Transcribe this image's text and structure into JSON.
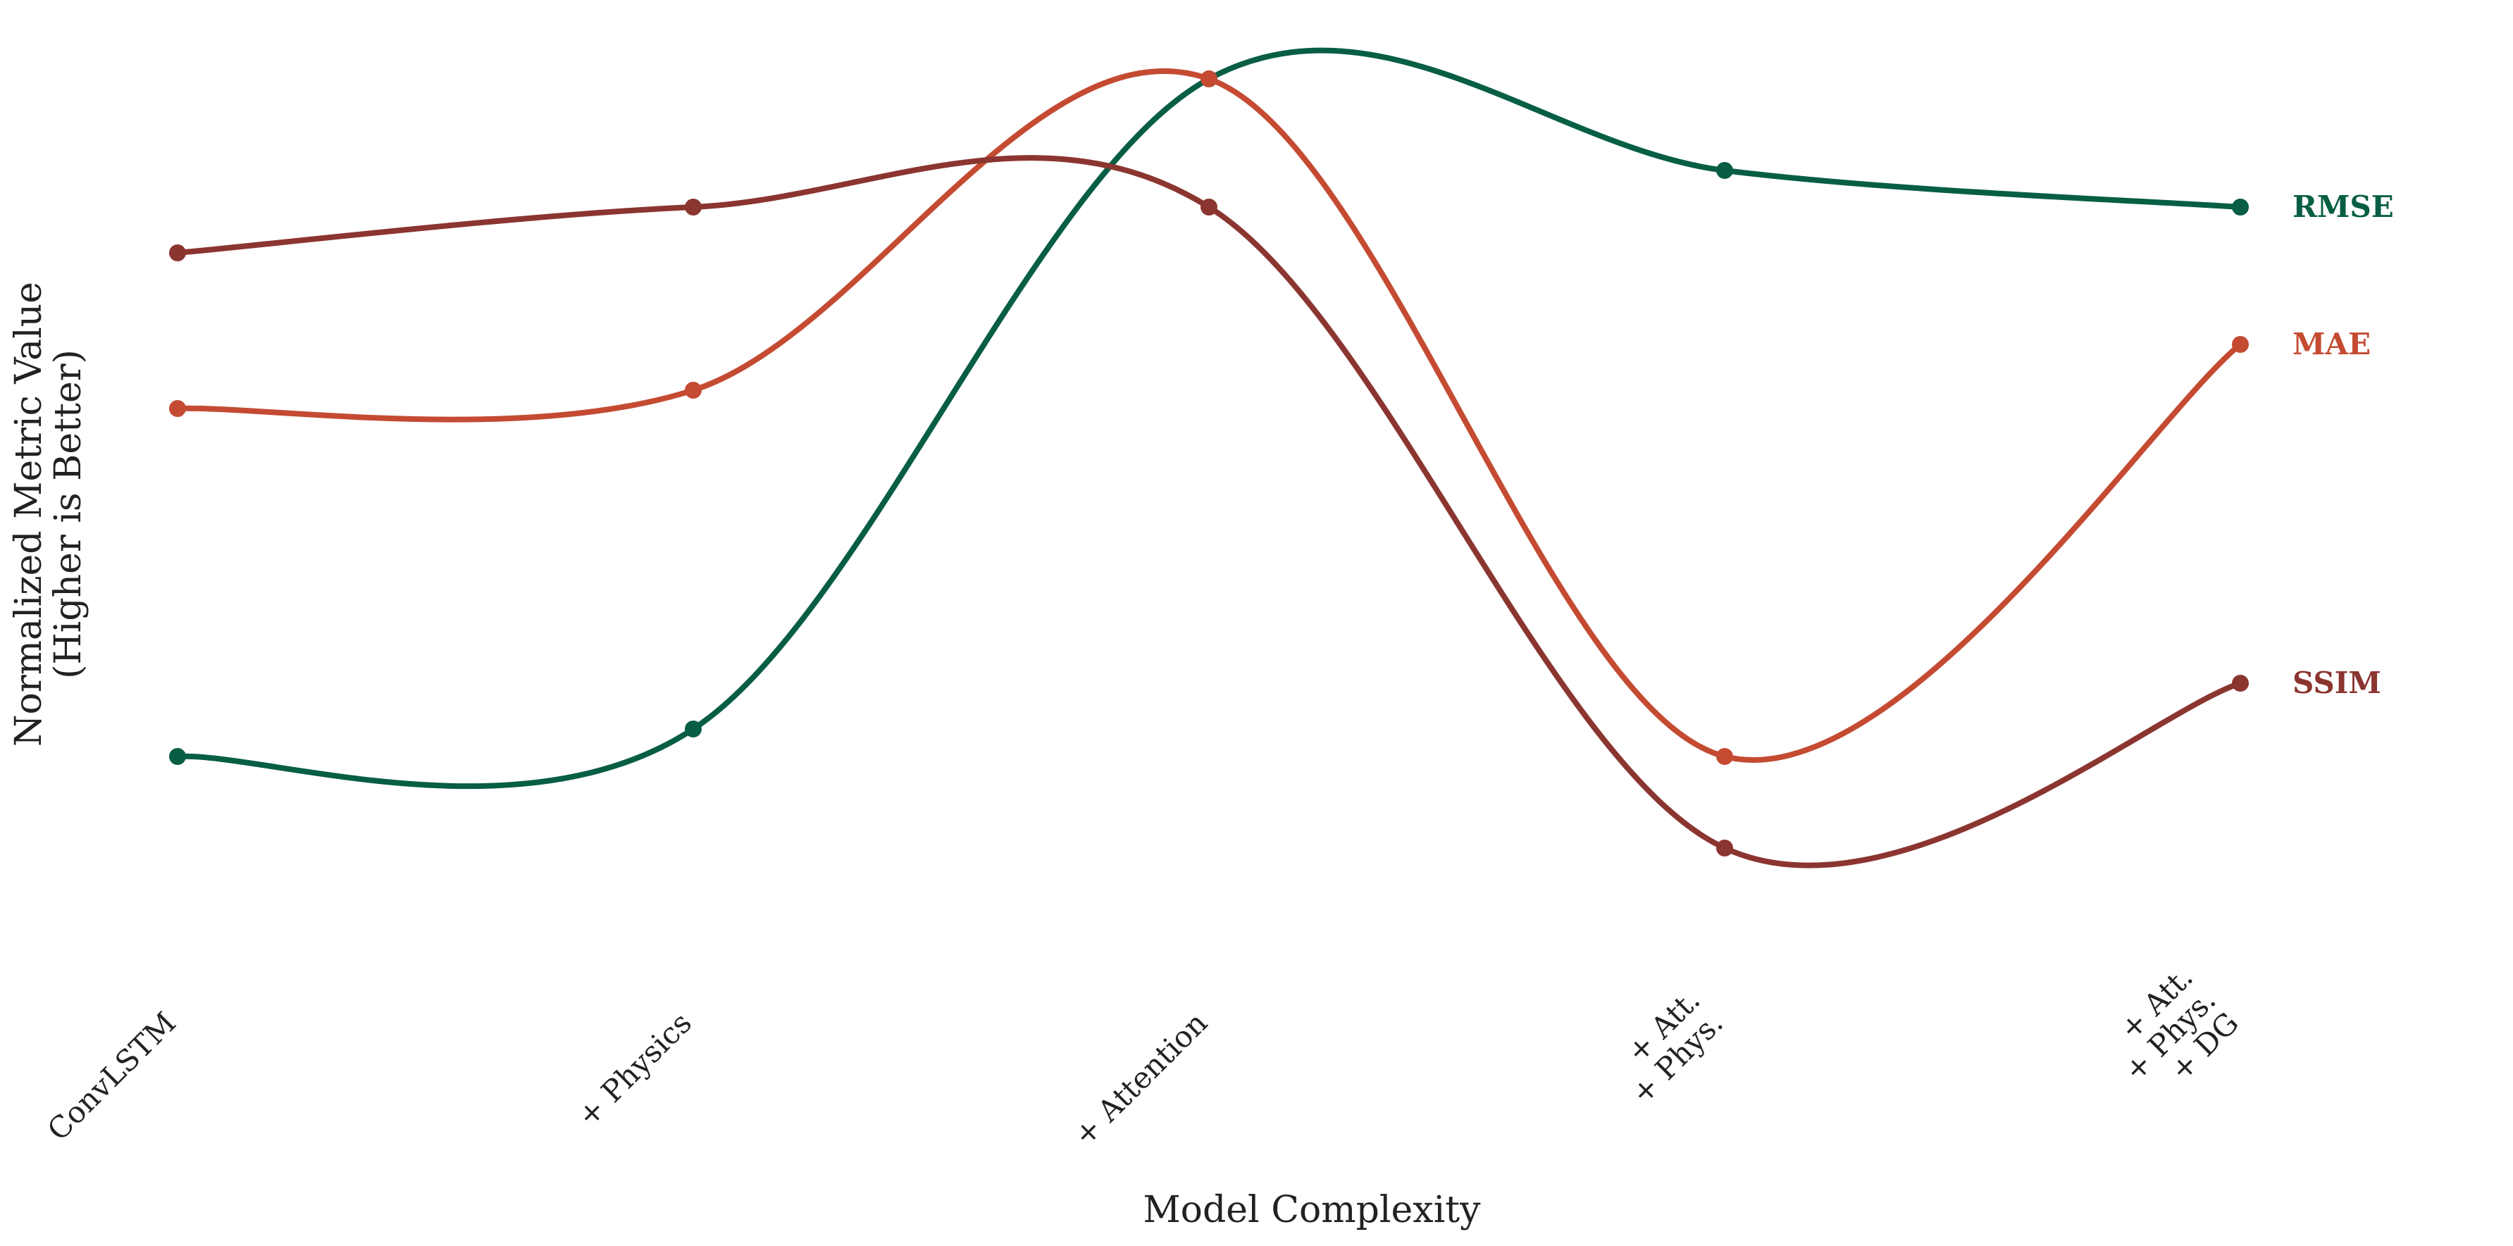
{
  "chart_data": {
    "type": "line",
    "title": "",
    "xlabel": "Model Complexity",
    "ylabel_lines": [
      "Normalized Metric Value",
      "(Higher is Better)"
    ],
    "categories": [
      [
        "ConvLSTM"
      ],
      [
        "+ Physics"
      ],
      [
        "+ Attention"
      ],
      [
        "+ Att.",
        "+ Phys."
      ],
      [
        "+ Att.",
        "+ Phys.",
        "+ DG"
      ]
    ],
    "ylim": [
      0,
      1
    ],
    "grid": false,
    "legend": "end-of-line labels",
    "smooth": true,
    "series": [
      {
        "name": "RMSE",
        "color": "#075E44",
        "values": [
          0.22,
          0.25,
          0.96,
          0.86,
          0.82
        ]
      },
      {
        "name": "MAE",
        "color": "#C44B32",
        "values": [
          0.6,
          0.62,
          0.96,
          0.22,
          0.67
        ]
      },
      {
        "name": "SSIM",
        "color": "#8B3530",
        "values": [
          0.77,
          0.82,
          0.82,
          0.12,
          0.3
        ]
      }
    ]
  }
}
